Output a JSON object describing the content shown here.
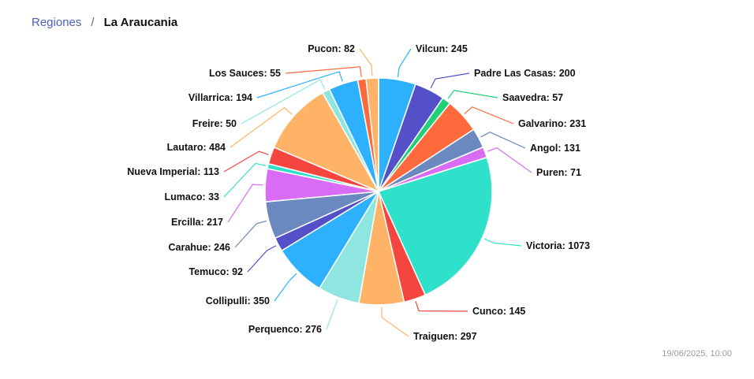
{
  "breadcrumb": {
    "parent": "Regiones",
    "separator": "/",
    "current": "La Araucania"
  },
  "timestamp": "19/06/2025, 10:00",
  "chart_data": {
    "type": "pie",
    "title": "",
    "legend": "none",
    "slices": [
      {
        "label": "Vilcun",
        "value": 245,
        "color": "#2db1ff"
      },
      {
        "label": "Padre Las Casas",
        "value": 200,
        "color": "#5450c8"
      },
      {
        "label": "Saavedra",
        "value": 57,
        "color": "#22d07a"
      },
      {
        "label": "Galvarino",
        "value": 231,
        "color": "#ff6a3d"
      },
      {
        "label": "Angol",
        "value": 131,
        "color": "#6b89bf"
      },
      {
        "label": "Puren",
        "value": 71,
        "color": "#d86cf5"
      },
      {
        "label": "Victoria",
        "value": 1073,
        "color": "#2fe0ca"
      },
      {
        "label": "Cunco",
        "value": 145,
        "color": "#f5453f"
      },
      {
        "label": "Traiguen",
        "value": 297,
        "color": "#ffb366"
      },
      {
        "label": "Perquenco",
        "value": 276,
        "color": "#8fe6e0"
      },
      {
        "label": "Collipulli",
        "value": 350,
        "color": "#2db1ff"
      },
      {
        "label": "Temuco",
        "value": 92,
        "color": "#5450c8"
      },
      {
        "label": "Carahue",
        "value": 246,
        "color": "#6b89bf"
      },
      {
        "label": "Ercilla",
        "value": 217,
        "color": "#d86cf5"
      },
      {
        "label": "Lumaco",
        "value": 33,
        "color": "#2fe0ca"
      },
      {
        "label": "Nueva Imperial",
        "value": 113,
        "color": "#f5453f"
      },
      {
        "label": "Lautaro",
        "value": 484,
        "color": "#ffb366"
      },
      {
        "label": "Freire",
        "value": 50,
        "color": "#8fe6e0"
      },
      {
        "label": "Villarrica",
        "value": 194,
        "color": "#2db1ff"
      },
      {
        "label": "Los Sauces",
        "value": 55,
        "color": "#ff6a3d"
      },
      {
        "label": "Pucon",
        "value": 82,
        "color": "#ffb366"
      }
    ]
  }
}
